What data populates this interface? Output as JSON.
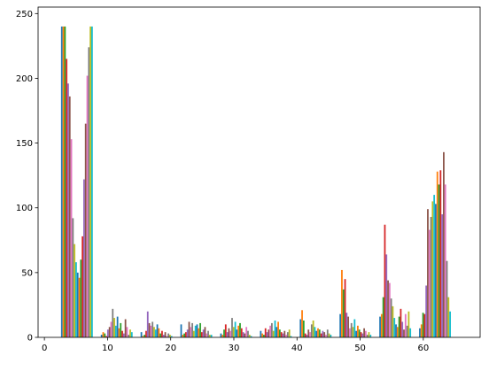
{
  "chart_data": {
    "type": "histogram",
    "bins": [
      2,
      8.3,
      14.6,
      20.9,
      27.2,
      33.5,
      39.8,
      46.1,
      52.4,
      58.7,
      65
    ],
    "rwidth": 0.8,
    "xlim": [
      -1,
      69
    ],
    "ylim": [
      0,
      255
    ],
    "xticks": [
      0,
      10,
      20,
      30,
      40,
      50,
      60
    ],
    "yticks": [
      0,
      50,
      100,
      150,
      200,
      250
    ],
    "series": [
      {
        "color": "#1f77b4",
        "values": [
          240,
          2,
          4,
          10,
          3,
          5,
          14,
          18,
          16,
          7
        ]
      },
      {
        "color": "#ff7f0e",
        "values": [
          240,
          4,
          1,
          2,
          2,
          3,
          21,
          52,
          18,
          10
        ]
      },
      {
        "color": "#2ca02c",
        "values": [
          240,
          3,
          2,
          3,
          6,
          2,
          13,
          37,
          31,
          19
        ]
      },
      {
        "color": "#d62728",
        "values": [
          215,
          1,
          5,
          4,
          10,
          7,
          3,
          45,
          87,
          18
        ]
      },
      {
        "color": "#9467bd",
        "values": [
          196,
          6,
          20,
          6,
          4,
          4,
          2,
          19,
          64,
          40
        ]
      },
      {
        "color": "#8c564b",
        "values": [
          186,
          8,
          11,
          12,
          7,
          6,
          6,
          16,
          44,
          99
        ]
      },
      {
        "color": "#e377c2",
        "values": [
          153,
          12,
          9,
          8,
          5,
          9,
          4,
          7,
          42,
          83
        ]
      },
      {
        "color": "#7f7f7f",
        "values": [
          92,
          22,
          12,
          11,
          15,
          11,
          10,
          11,
          30,
          93
        ]
      },
      {
        "color": "#bcbd22",
        "values": [
          72,
          15,
          8,
          5,
          8,
          5,
          13,
          8,
          24,
          105
        ]
      },
      {
        "color": "#17becf",
        "values": [
          58,
          9,
          6,
          9,
          12,
          13,
          8,
          14,
          15,
          110
        ]
      },
      {
        "color": "#1f77b4",
        "values": [
          50,
          16,
          10,
          10,
          6,
          8,
          5,
          5,
          10,
          103
        ]
      },
      {
        "color": "#ff7f0e",
        "values": [
          46,
          7,
          7,
          7,
          9,
          12,
          7,
          9,
          8,
          128
        ]
      },
      {
        "color": "#2ca02c",
        "values": [
          60,
          11,
          3,
          11,
          11,
          6,
          6,
          6,
          16,
          118
        ]
      },
      {
        "color": "#d62728",
        "values": [
          78,
          5,
          5,
          4,
          7,
          4,
          3,
          4,
          22,
          129
        ]
      },
      {
        "color": "#9467bd",
        "values": [
          122,
          3,
          2,
          6,
          4,
          3,
          5,
          3,
          12,
          95
        ]
      },
      {
        "color": "#8c564b",
        "values": [
          165,
          14,
          4,
          8,
          3,
          5,
          4,
          7,
          6,
          143
        ]
      },
      {
        "color": "#e377c2",
        "values": [
          202,
          8,
          1,
          3,
          8,
          2,
          2,
          5,
          18,
          118
        ]
      },
      {
        "color": "#7f7f7f",
        "values": [
          224,
          2,
          3,
          5,
          5,
          4,
          6,
          2,
          9,
          59
        ]
      },
      {
        "color": "#bcbd22",
        "values": [
          240,
          6,
          2,
          2,
          2,
          6,
          3,
          4,
          20,
          31
        ]
      },
      {
        "color": "#17becf",
        "values": [
          240,
          4,
          1,
          2,
          1,
          1,
          2,
          2,
          7,
          20
        ]
      }
    ]
  }
}
